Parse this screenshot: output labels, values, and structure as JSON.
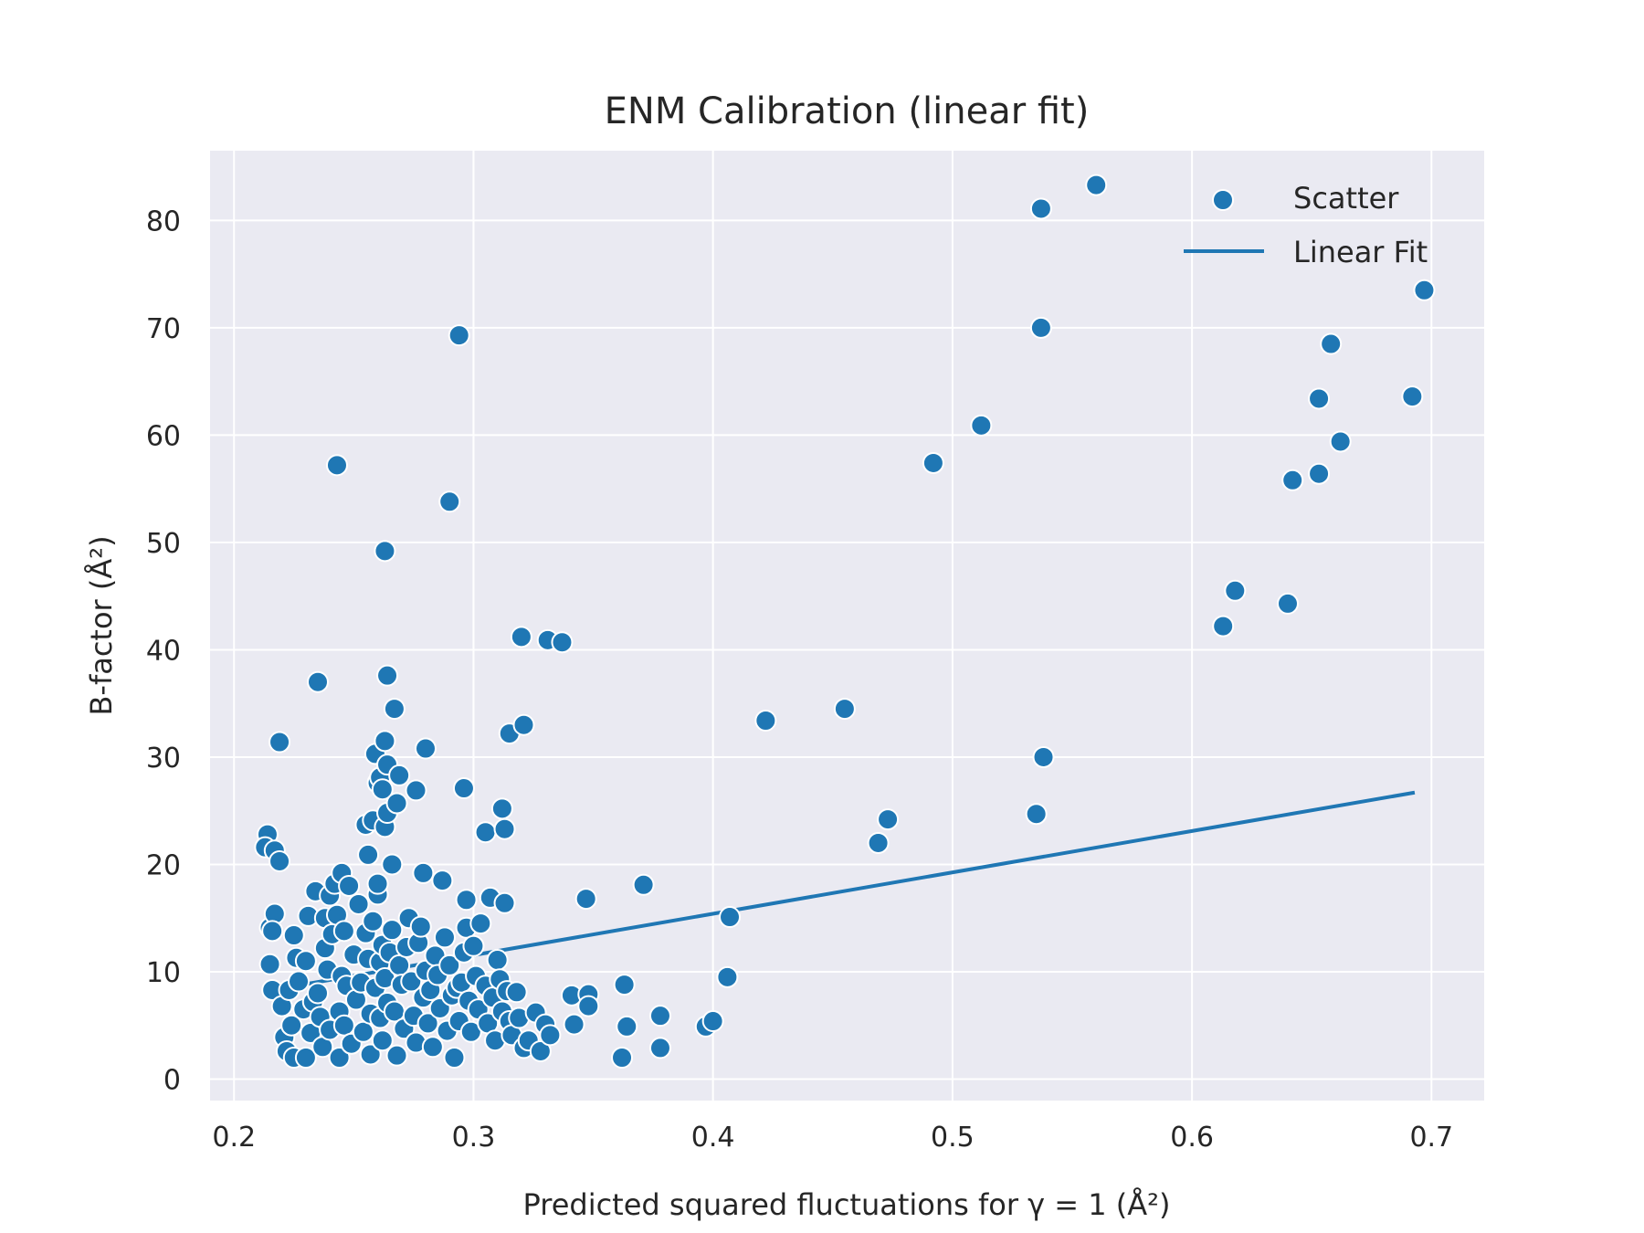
{
  "chart_data": {
    "type": "scatter",
    "title": "ENM Calibration (linear fit)",
    "xlabel": "Predicted squared fluctuations for γ = 1 (Å²)",
    "ylabel": "B-factor (Å²)",
    "xlim": [
      0.19,
      0.722
    ],
    "ylim": [
      -2,
      86.5
    ],
    "xticks": [
      0.2,
      0.3,
      0.4,
      0.5,
      0.6,
      0.7
    ],
    "xtick_labels": [
      "0.2",
      "0.3",
      "0.4",
      "0.5",
      "0.6",
      "0.7"
    ],
    "yticks": [
      0,
      10,
      20,
      30,
      40,
      50,
      60,
      70,
      80
    ],
    "ytick_labels": [
      "0",
      "10",
      "20",
      "30",
      "40",
      "50",
      "60",
      "70",
      "80"
    ],
    "grid": true,
    "legend_position": "top-right",
    "colors": {
      "series": "#1f77b4",
      "background": "#eaeaf2",
      "grid": "#ffffff",
      "text": "#262626"
    },
    "series": [
      {
        "name": "Scatter",
        "kind": "scatter",
        "points": [
          [
            0.214,
            22.8
          ],
          [
            0.213,
            21.6
          ],
          [
            0.217,
            21.3
          ],
          [
            0.219,
            20.3
          ],
          [
            0.219,
            31.4
          ],
          [
            0.215,
            14.1
          ],
          [
            0.217,
            15.4
          ],
          [
            0.216,
            13.8
          ],
          [
            0.215,
            10.7
          ],
          [
            0.216,
            8.3
          ],
          [
            0.22,
            6.8
          ],
          [
            0.221,
            3.9
          ],
          [
            0.222,
            2.6
          ],
          [
            0.225,
            2.0
          ],
          [
            0.224,
            5.0
          ],
          [
            0.223,
            8.3
          ],
          [
            0.225,
            13.4
          ],
          [
            0.226,
            11.3
          ],
          [
            0.227,
            9.1
          ],
          [
            0.229,
            6.5
          ],
          [
            0.231,
            15.2
          ],
          [
            0.23,
            11.0
          ],
          [
            0.23,
            2.0
          ],
          [
            0.232,
            4.3
          ],
          [
            0.233,
            7.2
          ],
          [
            0.234,
            17.5
          ],
          [
            0.235,
            8.0
          ],
          [
            0.236,
            5.8
          ],
          [
            0.237,
            3.0
          ],
          [
            0.238,
            12.2
          ],
          [
            0.238,
            15.0
          ],
          [
            0.239,
            10.2
          ],
          [
            0.24,
            17.1
          ],
          [
            0.241,
            13.5
          ],
          [
            0.24,
            4.6
          ],
          [
            0.242,
            18.2
          ],
          [
            0.243,
            15.3
          ],
          [
            0.244,
            6.3
          ],
          [
            0.244,
            2.0
          ],
          [
            0.245,
            19.2
          ],
          [
            0.245,
            9.6
          ],
          [
            0.246,
            13.8
          ],
          [
            0.246,
            5.0
          ],
          [
            0.247,
            8.7
          ],
          [
            0.248,
            18.0
          ],
          [
            0.249,
            3.3
          ],
          [
            0.25,
            11.6
          ],
          [
            0.251,
            7.4
          ],
          [
            0.252,
            16.3
          ],
          [
            0.253,
            9.0
          ],
          [
            0.254,
            4.4
          ],
          [
            0.255,
            13.6
          ],
          [
            0.256,
            11.2
          ],
          [
            0.257,
            6.1
          ],
          [
            0.257,
            2.3
          ],
          [
            0.258,
            14.7
          ],
          [
            0.259,
            8.5
          ],
          [
            0.26,
            17.2
          ],
          [
            0.26,
            18.2
          ],
          [
            0.261,
            10.9
          ],
          [
            0.261,
            5.7
          ],
          [
            0.262,
            12.5
          ],
          [
            0.262,
            3.6
          ],
          [
            0.263,
            9.4
          ],
          [
            0.264,
            7.1
          ],
          [
            0.265,
            11.8
          ],
          [
            0.266,
            13.9
          ],
          [
            0.267,
            6.3
          ],
          [
            0.268,
            2.2
          ],
          [
            0.269,
            10.6
          ],
          [
            0.27,
            8.8
          ],
          [
            0.271,
            4.7
          ],
          [
            0.272,
            12.3
          ],
          [
            0.273,
            15.0
          ],
          [
            0.274,
            9.1
          ],
          [
            0.275,
            5.9
          ],
          [
            0.276,
            3.4
          ],
          [
            0.277,
            12.7
          ],
          [
            0.278,
            14.2
          ],
          [
            0.279,
            7.6
          ],
          [
            0.28,
            10.1
          ],
          [
            0.281,
            5.2
          ],
          [
            0.282,
            8.3
          ],
          [
            0.283,
            3.0
          ],
          [
            0.284,
            11.5
          ],
          [
            0.285,
            9.7
          ],
          [
            0.286,
            6.6
          ],
          [
            0.287,
            18.5
          ],
          [
            0.288,
            13.2
          ],
          [
            0.289,
            4.5
          ],
          [
            0.29,
            10.6
          ],
          [
            0.291,
            7.8
          ],
          [
            0.292,
            2.0
          ],
          [
            0.293,
            8.5
          ],
          [
            0.294,
            5.4
          ],
          [
            0.295,
            9.0
          ],
          [
            0.296,
            11.8
          ],
          [
            0.297,
            14.1
          ],
          [
            0.298,
            7.3
          ],
          [
            0.299,
            4.4
          ],
          [
            0.3,
            12.4
          ],
          [
            0.301,
            9.6
          ],
          [
            0.302,
            6.5
          ],
          [
            0.303,
            14.5
          ],
          [
            0.305,
            8.7
          ],
          [
            0.306,
            5.2
          ],
          [
            0.307,
            16.9
          ],
          [
            0.308,
            7.6
          ],
          [
            0.309,
            3.6
          ],
          [
            0.31,
            11.1
          ],
          [
            0.311,
            9.3
          ],
          [
            0.312,
            6.3
          ],
          [
            0.313,
            16.4
          ],
          [
            0.314,
            8.2
          ],
          [
            0.315,
            5.4
          ],
          [
            0.316,
            4.1
          ],
          [
            0.318,
            8.1
          ],
          [
            0.319,
            5.7
          ],
          [
            0.321,
            2.9
          ],
          [
            0.323,
            3.6
          ],
          [
            0.326,
            6.2
          ],
          [
            0.328,
            2.6
          ],
          [
            0.33,
            5.1
          ],
          [
            0.332,
            4.1
          ],
          [
            0.243,
            57.2
          ],
          [
            0.235,
            37.0
          ],
          [
            0.255,
            23.7
          ],
          [
            0.258,
            24.1
          ],
          [
            0.256,
            20.9
          ],
          [
            0.259,
            30.3
          ],
          [
            0.26,
            27.6
          ],
          [
            0.261,
            28.1
          ],
          [
            0.262,
            27.0
          ],
          [
            0.263,
            23.5
          ],
          [
            0.264,
            24.8
          ],
          [
            0.263,
            31.5
          ],
          [
            0.264,
            29.3
          ],
          [
            0.266,
            20.0
          ],
          [
            0.267,
            34.5
          ],
          [
            0.268,
            25.7
          ],
          [
            0.269,
            28.3
          ],
          [
            0.263,
            49.2
          ],
          [
            0.264,
            37.6
          ],
          [
            0.276,
            26.9
          ],
          [
            0.279,
            19.2
          ],
          [
            0.28,
            30.8
          ],
          [
            0.29,
            53.8
          ],
          [
            0.294,
            69.3
          ],
          [
            0.296,
            27.1
          ],
          [
            0.297,
            16.7
          ],
          [
            0.305,
            23.0
          ],
          [
            0.312,
            25.2
          ],
          [
            0.313,
            23.3
          ],
          [
            0.315,
            32.2
          ],
          [
            0.32,
            41.2
          ],
          [
            0.321,
            33.0
          ],
          [
            0.331,
            40.9
          ],
          [
            0.337,
            40.7
          ],
          [
            0.341,
            7.8
          ],
          [
            0.342,
            5.1
          ],
          [
            0.347,
            16.8
          ],
          [
            0.348,
            7.9
          ],
          [
            0.348,
            6.8
          ],
          [
            0.362,
            2.0
          ],
          [
            0.363,
            8.8
          ],
          [
            0.364,
            4.9
          ],
          [
            0.371,
            18.1
          ],
          [
            0.378,
            5.9
          ],
          [
            0.378,
            2.9
          ],
          [
            0.397,
            4.9
          ],
          [
            0.4,
            5.4
          ],
          [
            0.406,
            9.5
          ],
          [
            0.407,
            15.1
          ],
          [
            0.422,
            33.4
          ],
          [
            0.455,
            34.5
          ],
          [
            0.469,
            22.0
          ],
          [
            0.473,
            24.2
          ],
          [
            0.492,
            57.4
          ],
          [
            0.512,
            60.9
          ],
          [
            0.535,
            24.7
          ],
          [
            0.537,
            81.1
          ],
          [
            0.537,
            70.0
          ],
          [
            0.538,
            30.0
          ],
          [
            0.56,
            83.3
          ],
          [
            0.613,
            42.2
          ],
          [
            0.618,
            45.5
          ],
          [
            0.64,
            44.3
          ],
          [
            0.642,
            55.8
          ],
          [
            0.653,
            63.4
          ],
          [
            0.653,
            56.4
          ],
          [
            0.658,
            68.5
          ],
          [
            0.662,
            59.4
          ],
          [
            0.692,
            63.6
          ],
          [
            0.697,
            73.5
          ]
        ]
      },
      {
        "name": "Linear Fit",
        "kind": "line",
        "points": [
          [
            0.213,
            8.2
          ],
          [
            0.693,
            26.7
          ]
        ]
      }
    ]
  }
}
